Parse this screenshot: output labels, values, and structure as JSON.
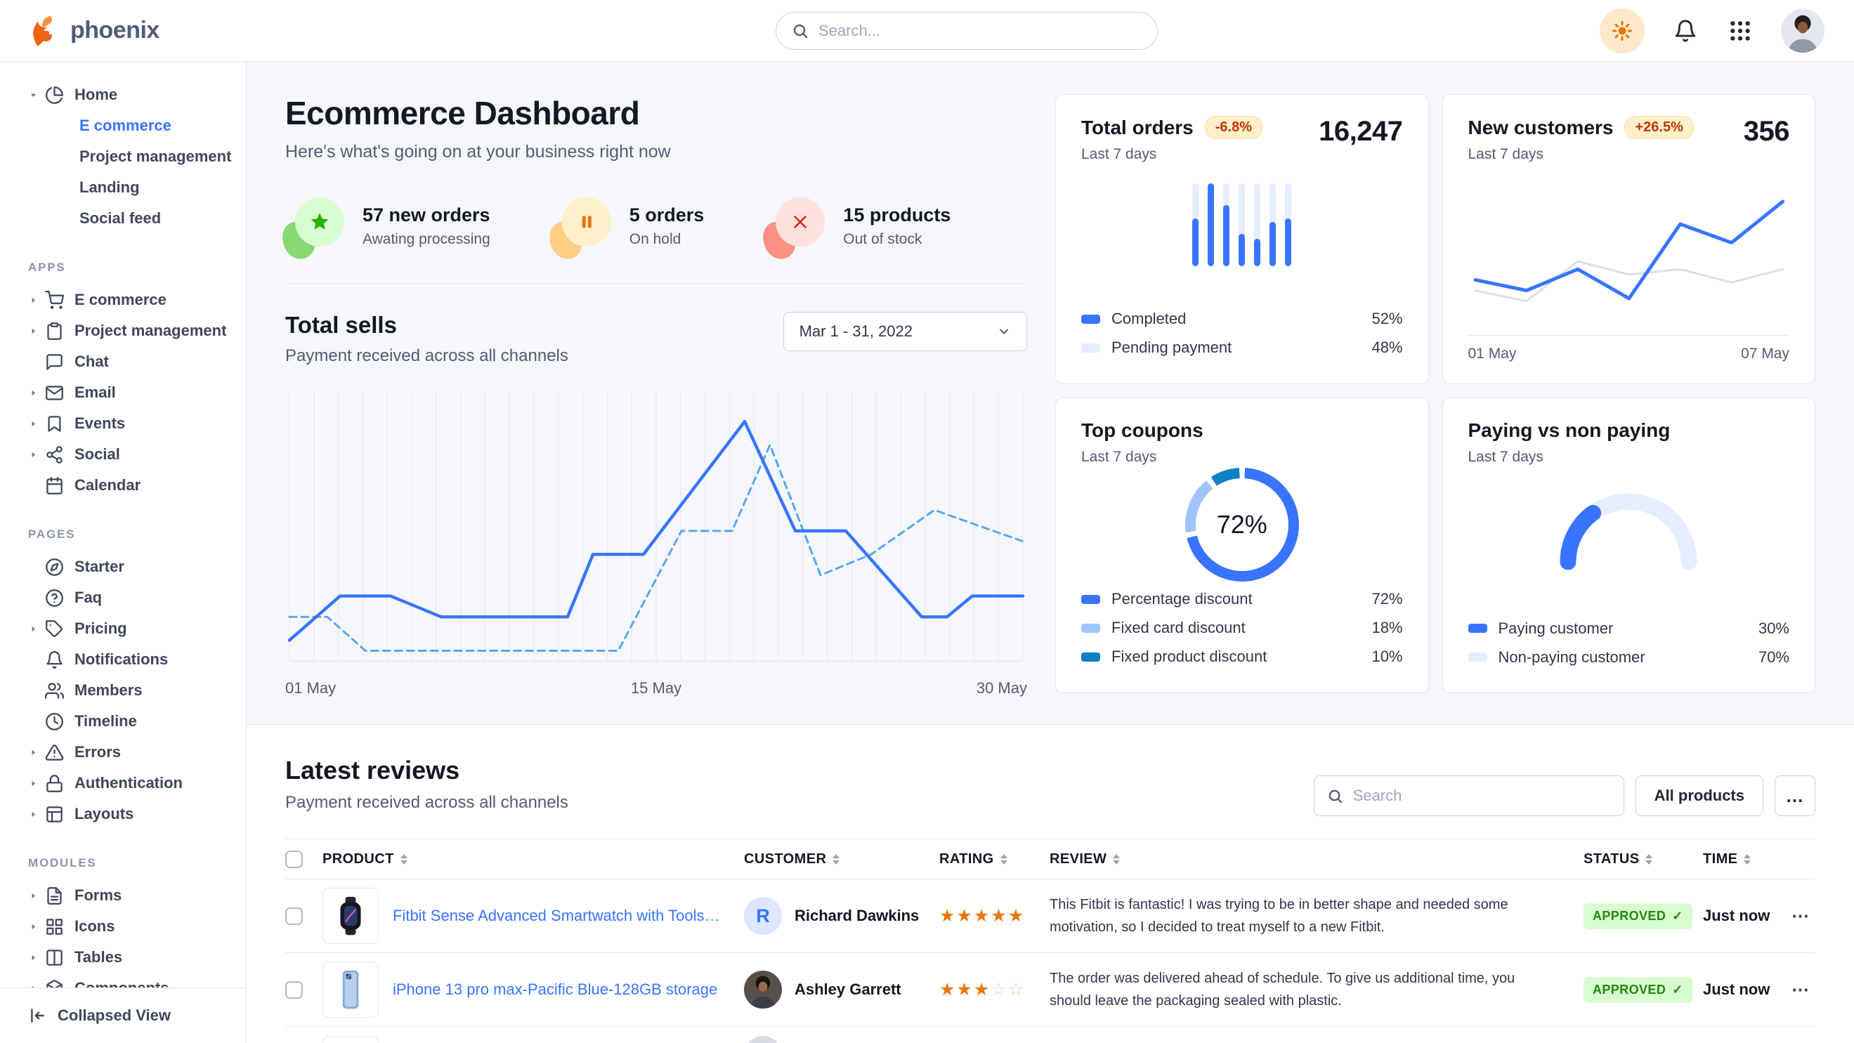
{
  "colors": {
    "primary": "#3874ff",
    "primary_light": "#e5edff",
    "dashed_line": "#58a7ee",
    "success_text": "#23890b",
    "success_bg": "#d9fbd0",
    "warning_text": "#bc3803",
    "warning_bg": "#ffefca",
    "star": "#e5780b",
    "border": "#e3e6ed",
    "body_bg": "#f5f7fa"
  },
  "navbar": {
    "brand": "phoenix",
    "search_placeholder": "Search...",
    "right_icons": [
      "sun-icon",
      "bell-icon",
      "apps-grid-icon",
      "user-avatar"
    ]
  },
  "sidebar": {
    "sections": [
      {
        "label": "",
        "items": [
          {
            "label": "Home",
            "icon": "pie-chart",
            "caret": "down",
            "children": [
              {
                "label": "E commerce",
                "active": true
              },
              {
                "label": "Project management"
              },
              {
                "label": "Landing"
              },
              {
                "label": "Social feed"
              }
            ]
          }
        ]
      },
      {
        "label": "APPS",
        "items": [
          {
            "label": "E commerce",
            "icon": "shopping-cart",
            "caret": "right"
          },
          {
            "label": "Project management",
            "icon": "clipboard",
            "caret": "right"
          },
          {
            "label": "Chat",
            "icon": "chat"
          },
          {
            "label": "Email",
            "icon": "mail",
            "caret": "right"
          },
          {
            "label": "Events",
            "icon": "bookmark",
            "caret": "right"
          },
          {
            "label": "Social",
            "icon": "share",
            "caret": "right"
          },
          {
            "label": "Calendar",
            "icon": "calendar"
          }
        ]
      },
      {
        "label": "PAGES",
        "items": [
          {
            "label": "Starter",
            "icon": "compass"
          },
          {
            "label": "Faq",
            "icon": "help-circle"
          },
          {
            "label": "Pricing",
            "icon": "tag",
            "caret": "right"
          },
          {
            "label": "Notifications",
            "icon": "bell"
          },
          {
            "label": "Members",
            "icon": "users"
          },
          {
            "label": "Timeline",
            "icon": "clock"
          },
          {
            "label": "Errors",
            "icon": "alert-triangle",
            "caret": "right"
          },
          {
            "label": "Authentication",
            "icon": "lock",
            "caret": "right"
          },
          {
            "label": "Layouts",
            "icon": "layout",
            "caret": "right"
          }
        ]
      },
      {
        "label": "MODULES",
        "items": [
          {
            "label": "Forms",
            "icon": "file-text",
            "caret": "right"
          },
          {
            "label": "Icons",
            "icon": "grid",
            "caret": "right"
          },
          {
            "label": "Tables",
            "icon": "columns",
            "caret": "right"
          },
          {
            "label": "Components",
            "icon": "package",
            "caret": "right"
          }
        ]
      }
    ],
    "footer": {
      "label": "Collapsed View",
      "icon": "collapse-icon"
    }
  },
  "page": {
    "title": "Ecommerce Dashboard",
    "subtitle": "Here's what's going on at your business right now"
  },
  "stats": [
    {
      "value": "57 new orders",
      "label": "Awating processing",
      "icon": "star-icon",
      "theme": "green"
    },
    {
      "value": "5 orders",
      "label": "On hold",
      "icon": "pause-icon",
      "theme": "orange"
    },
    {
      "value": "15 products",
      "label": "Out of stock",
      "icon": "x-icon",
      "theme": "red"
    }
  ],
  "total_sells": {
    "title": "Total sells",
    "subtitle": "Payment received across all channels",
    "date_range": "Mar 1 - 31, 2022"
  },
  "cards": {
    "total_orders": {
      "title": "Total orders",
      "badge": "-6.8%",
      "value": "16,247",
      "period": "Last 7 days",
      "legend": [
        {
          "label": "Completed",
          "value": "52%",
          "color": "#3874ff"
        },
        {
          "label": "Pending payment",
          "value": "48%",
          "color": "#e5edff"
        }
      ]
    },
    "new_customers": {
      "title": "New customers",
      "badge": "+26.5%",
      "value": "356",
      "period": "Last 7 days",
      "x_labels": [
        "01 May",
        "07 May"
      ]
    },
    "top_coupons": {
      "title": "Top coupons",
      "period": "Last 7 days",
      "center_label": "72%",
      "legend": [
        {
          "label": "Percentage discount",
          "value": "72%",
          "color": "#3874ff"
        },
        {
          "label": "Fixed card discount",
          "value": "18%",
          "color": "#9fc5ff"
        },
        {
          "label": "Fixed product discount",
          "value": "10%",
          "color": "#0e81c6"
        }
      ]
    },
    "paying": {
      "title": "Paying vs non paying",
      "period": "Last 7 days",
      "legend": [
        {
          "label": "Paying customer",
          "value": "30%",
          "color": "#3874ff"
        },
        {
          "label": "Non-paying customer",
          "value": "70%",
          "color": "#e5edff"
        }
      ]
    }
  },
  "reviews": {
    "title": "Latest reviews",
    "subtitle": "Payment received across all channels",
    "search_placeholder": "Search",
    "filter_button": "All products",
    "more_button": "...",
    "columns": [
      "PRODUCT",
      "CUSTOMER",
      "RATING",
      "REVIEW",
      "STATUS",
      "TIME"
    ],
    "rows": [
      {
        "product": "Fitbit Sense Advanced Smartwatch with Tools fo...",
        "product_image": "smartwatch",
        "customer": "Richard Dawkins",
        "avatar_type": "initial",
        "avatar_initial": "R",
        "rating": 5,
        "review": "This Fitbit is fantastic! I was trying to be in better shape and needed some motivation, so I decided to treat myself to a new Fitbit.",
        "status": "APPROVED",
        "time": "Just now"
      },
      {
        "product": "iPhone 13 pro max-Pacific Blue-128GB storage",
        "product_image": "iphone",
        "customer": "Ashley Garrett",
        "avatar_type": "photo",
        "rating": 3,
        "review": "The order was delivered ahead of schedule. To give us additional time, you should leave the packaging sealed with plastic.",
        "status": "APPROVED",
        "time": "Just now"
      },
      {
        "partial": true,
        "product_image": "placeholder",
        "avatar_type": "gray"
      }
    ]
  },
  "chart_data": [
    {
      "id": "total-sells",
      "type": "line",
      "title": "Total sells",
      "xlabel": "",
      "ylabel": "",
      "x_axis": {
        "labels": [
          "01 May",
          "15 May",
          "30 May"
        ],
        "domain": [
          1,
          30
        ]
      },
      "y_domain": [
        0,
        100
      ],
      "grid": "vertical",
      "gridline_count": 31,
      "legend_position": "none",
      "series": [
        {
          "name": "Current period",
          "style": "solid",
          "color": "#3874ff",
          "points": [
            [
              1,
              8
            ],
            [
              3,
              25
            ],
            [
              5,
              25
            ],
            [
              7,
              17
            ],
            [
              12,
              17
            ],
            [
              13,
              41
            ],
            [
              15,
              41
            ],
            [
              19,
              92
            ],
            [
              21,
              50
            ],
            [
              23,
              50
            ],
            [
              26,
              17
            ],
            [
              27,
              17
            ],
            [
              28,
              25
            ],
            [
              30,
              25
            ]
          ]
        },
        {
          "name": "Previous period",
          "style": "dashed",
          "color": "#58a7ee",
          "points": [
            [
              1,
              17
            ],
            [
              2.5,
              17
            ],
            [
              4,
              4
            ],
            [
              14,
              4
            ],
            [
              16.5,
              50
            ],
            [
              18.5,
              50
            ],
            [
              20,
              83
            ],
            [
              22,
              33
            ],
            [
              24,
              41
            ],
            [
              26.5,
              58
            ],
            [
              30,
              46
            ]
          ]
        }
      ]
    },
    {
      "id": "total-orders",
      "type": "bar",
      "title": "Total orders",
      "values_pct": [
        58,
        100,
        74,
        39,
        33,
        54,
        58
      ],
      "bar_color": "#3874ff",
      "track_color": "#e5edff",
      "legend": [
        {
          "label": "Completed",
          "value": 52
        },
        {
          "label": "Pending payment",
          "value": 48
        }
      ]
    },
    {
      "id": "new-customers",
      "type": "line",
      "title": "New customers",
      "x_axis": {
        "labels": [
          "01 May",
          "07 May"
        ]
      },
      "y_domain": [
        0,
        100
      ],
      "series": [
        {
          "name": "Previous period",
          "color": "#d9dee8",
          "points_pct": [
            28,
            20,
            50,
            40,
            44,
            34,
            44
          ]
        },
        {
          "name": "Current period",
          "color": "#3874ff",
          "points_pct": [
            36,
            28,
            44,
            22,
            78,
            64,
            95
          ]
        }
      ]
    },
    {
      "id": "top-coupons",
      "type": "pie",
      "title": "Top coupons",
      "center_label": "72%",
      "slices": [
        {
          "label": "Percentage discount",
          "value": 72,
          "color": "#3874ff"
        },
        {
          "label": "Fixed card discount",
          "value": 18,
          "color": "#9fc5ff"
        },
        {
          "label": "Fixed product discount",
          "value": 10,
          "color": "#0e81c6"
        }
      ]
    },
    {
      "id": "paying",
      "type": "gauge",
      "title": "Paying vs non paying",
      "slices": [
        {
          "label": "Paying customer",
          "value": 30,
          "color": "#3874ff"
        },
        {
          "label": "Non-paying customer",
          "value": 70,
          "color": "#e5edff"
        }
      ]
    }
  ]
}
